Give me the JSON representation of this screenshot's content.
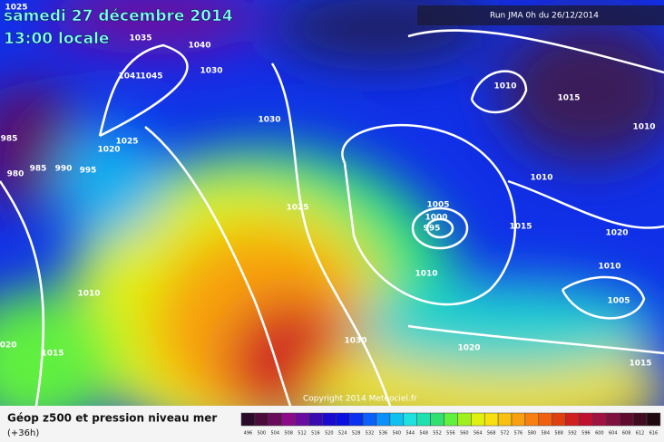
{
  "header": {
    "title": "samedi 27 décembre 2014",
    "subtitle": "13:00 locale",
    "run": "Run JMA 0h du 26/12/2014"
  },
  "copyright": "Copyright 2014 Meteociel.fr",
  "footer": {
    "title": "Géop z500 et pression niveau mer",
    "lead": "(+36h)"
  },
  "isobar_labels": [
    1025,
    1035,
    1040,
    1030,
    1041,
    1045,
    1020,
    985,
    980,
    985,
    990,
    995,
    1025,
    1030,
    1025,
    1010,
    1020,
    1015,
    1005,
    1000,
    995,
    1010,
    1015,
    1010,
    1015,
    1010,
    1010,
    1020,
    1010,
    1005,
    1030,
    1020,
    1015
  ],
  "scale": {
    "labels": [
      496,
      500,
      504,
      508,
      512,
      516,
      520,
      524,
      528,
      532,
      536,
      540,
      544,
      548,
      552,
      556,
      560,
      564,
      568,
      572,
      576,
      580,
      584,
      588,
      592,
      596,
      600,
      604,
      608,
      612,
      616
    ],
    "colors": [
      "#2a0a2a",
      "#4a0a3a",
      "#6a0a5a",
      "#8a0a8a",
      "#6a0aa0",
      "#3a0ab0",
      "#1a0ad0",
      "#0a10e0",
      "#0a30f0",
      "#0a60f8",
      "#0a90f8",
      "#10c0f0",
      "#20e0e0",
      "#20e0b0",
      "#30e070",
      "#60f040",
      "#a0f020",
      "#e0f010",
      "#f8e010",
      "#f8c010",
      "#f8a010",
      "#f88010",
      "#f06010",
      "#e04010",
      "#d02020",
      "#c01030",
      "#a01040",
      "#801040",
      "#600a30",
      "#400a20",
      "#200810"
    ]
  }
}
